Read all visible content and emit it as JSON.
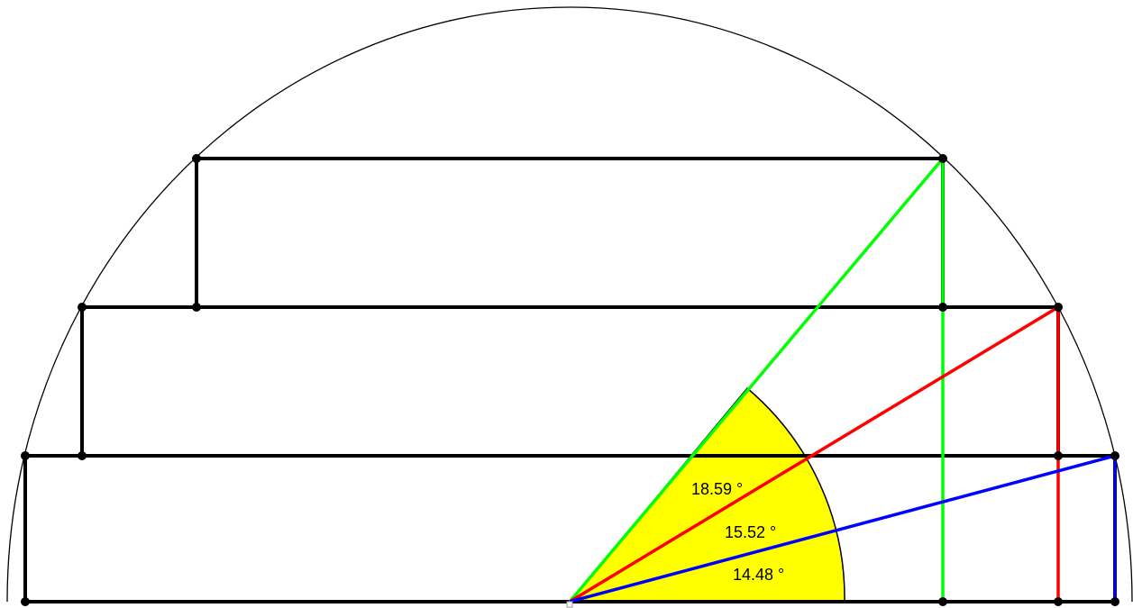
{
  "angles": [
    {
      "id": "green",
      "value": "18.59 °",
      "color": "#00ff00"
    },
    {
      "id": "red",
      "value": "15.52 °",
      "color": "#ff0000"
    },
    {
      "id": "blue",
      "value": "14.48 °",
      "color": "#0000ff"
    }
  ],
  "colors": {
    "sector": "#ffff00",
    "rectangle": "#000000",
    "circle": "#000000",
    "point": "#000000",
    "background": "#ffffff"
  }
}
